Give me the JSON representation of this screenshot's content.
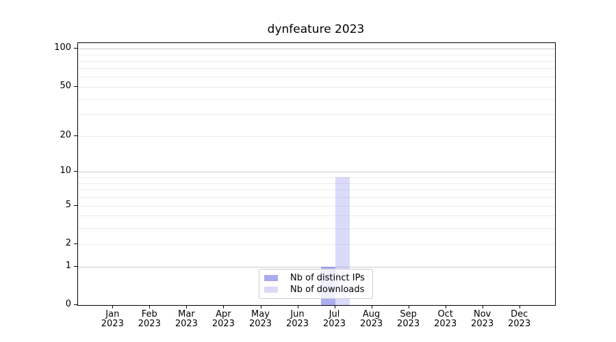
{
  "chart_data": {
    "type": "bar",
    "title": "dynfeature 2023",
    "xlabel": "",
    "ylabel": "",
    "categories": [
      "Jan",
      "Feb",
      "Mar",
      "Apr",
      "May",
      "Jun",
      "Jul",
      "Aug",
      "Sep",
      "Oct",
      "Nov",
      "Dec"
    ],
    "category_year": "2023",
    "series": [
      {
        "name": "Nb of distinct IPs",
        "fill": "rgba(85,85,230,0.48)",
        "legend_swatch": "#aaaaf0",
        "values": [
          0,
          0,
          0,
          0,
          0,
          0,
          1,
          0,
          0,
          0,
          0,
          0
        ]
      },
      {
        "name": "Nb of downloads",
        "fill": "rgba(85,85,230,0.22)",
        "legend_swatch": "#dadaf8",
        "values": [
          0,
          0,
          0,
          0,
          0,
          0,
          9,
          0,
          0,
          0,
          0,
          0
        ]
      }
    ],
    "y_axis": {
      "scale": "log1p",
      "min": 0,
      "max": 111,
      "tick_labels": [
        0,
        1,
        2,
        5,
        10,
        20,
        50,
        100
      ],
      "decade_gridlines": [
        1,
        10,
        100
      ],
      "minor_gridlines": [
        2,
        3,
        4,
        5,
        6,
        7,
        8,
        9,
        20,
        30,
        40,
        50,
        60,
        70,
        80,
        90
      ],
      "major_grid_color": "#cccccc",
      "minor_grid_color": "#ececec"
    },
    "legend": {
      "position": "lower center"
    },
    "grid": true
  }
}
